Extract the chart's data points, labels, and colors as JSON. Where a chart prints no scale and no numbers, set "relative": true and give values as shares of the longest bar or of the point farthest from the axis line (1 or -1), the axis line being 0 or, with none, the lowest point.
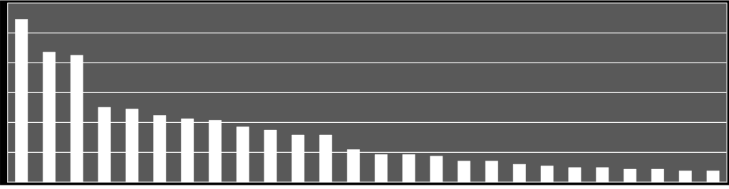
{
  "chart_data": {
    "type": "bar",
    "relative": true,
    "grid": "y",
    "color": "#ffffff",
    "categories": [
      null,
      null,
      null,
      null,
      null,
      null,
      null,
      null,
      null,
      null,
      null,
      null,
      null,
      null,
      null,
      null,
      null,
      null,
      null,
      null,
      null,
      null,
      null,
      null,
      null,
      null
    ],
    "values": [
      1,
      0.8,
      0.78,
      0.46,
      0.45,
      0.41,
      0.39,
      0.38,
      0.34,
      0.32,
      0.29,
      0.29,
      0.2,
      0.17,
      0.17,
      0.16,
      0.13,
      0.13,
      0.11,
      0.1,
      0.09,
      0.09,
      0.08,
      0.08,
      0.07,
      0.07
    ]
  }
}
